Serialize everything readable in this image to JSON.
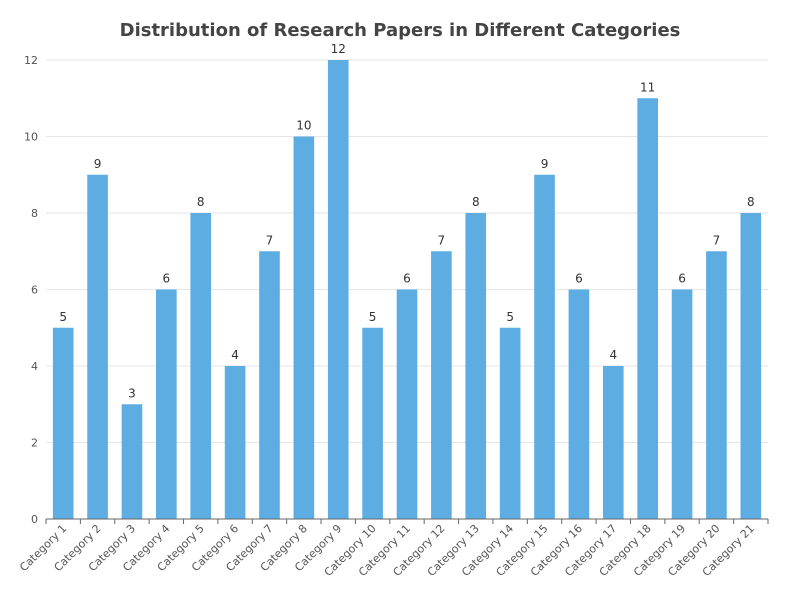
{
  "chart_data": {
    "type": "bar",
    "title": "Distribution of Research Papers in Different Categories",
    "xlabel": "",
    "ylabel": "",
    "categories": [
      "Category 1",
      "Category 2",
      "Category 3",
      "Category 4",
      "Category 5",
      "Category 6",
      "Category 7",
      "Category 8",
      "Category 9",
      "Category 10",
      "Category 11",
      "Category 12",
      "Category 13",
      "Category 14",
      "Category 15",
      "Category 16",
      "Category 17",
      "Category 18",
      "Category 19",
      "Category 20",
      "Category 21"
    ],
    "values": [
      5,
      9,
      3,
      6,
      8,
      4,
      7,
      10,
      12,
      5,
      6,
      7,
      8,
      5,
      9,
      6,
      4,
      11,
      6,
      7,
      8
    ],
    "ylim": [
      0,
      12
    ],
    "yticks": [
      0,
      2,
      4,
      6,
      8,
      10,
      12
    ],
    "grid": true,
    "legend": "none",
    "bar_color": "#5dade2",
    "grid_color": "#e6e6e6",
    "axis_color": "#666666"
  }
}
